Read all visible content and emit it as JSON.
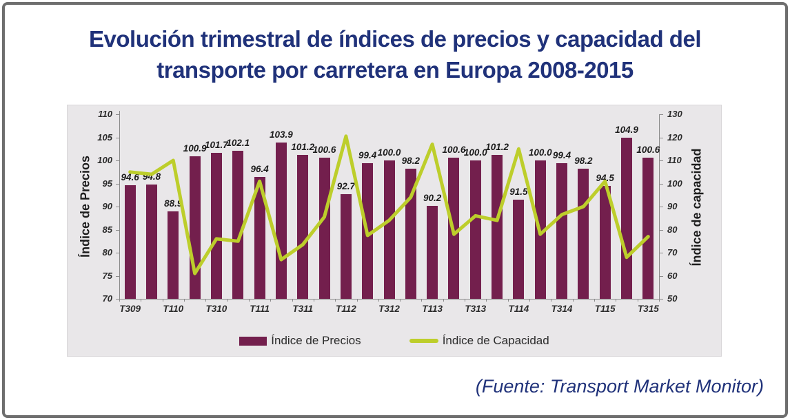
{
  "header": {
    "title_line1": "Evolución trimestral de índices de precios y capacidad del",
    "title_line2": "transporte por carretera en Europa 2008-2015"
  },
  "footer": {
    "source": "(Fuente: Transport Market Monitor)"
  },
  "colors": {
    "title_navy": "#20327A",
    "bar": "#731F4D",
    "line": "#BDCE2B",
    "panel_bg": "#E9E7E9",
    "frame_border": "#6E6E6E",
    "tick_text": "#2b2b2b"
  },
  "chart_data": {
    "type": "combo-bar-line",
    "title": "Evolución trimestral de índices de precios y capacidad del transporte por carretera en Europa 2008-2015",
    "x_tick_labels": [
      "T309",
      "T110",
      "T310",
      "T111",
      "T311",
      "T112",
      "T312",
      "T113",
      "T313",
      "T114",
      "T314",
      "T115",
      "T315"
    ],
    "x_tick_bar_indices": [
      0,
      2,
      4,
      6,
      8,
      10,
      12,
      14,
      16,
      18,
      20,
      22,
      24
    ],
    "series": [
      {
        "name": "Índice de Precios",
        "type": "bar",
        "axis": "left",
        "values": [
          94.6,
          94.8,
          88.9,
          100.9,
          101.7,
          102.1,
          96.4,
          103.9,
          101.2,
          100.6,
          92.7,
          99.4,
          100.0,
          98.2,
          90.2,
          100.6,
          100.0,
          101.2,
          91.5,
          100.0,
          99.4,
          98.2,
          94.5,
          104.9,
          100.6
        ]
      },
      {
        "name": "Índice de Capacidad",
        "type": "line",
        "axis": "right",
        "values": [
          105,
          104,
          110,
          61,
          76,
          75,
          101,
          67,
          73.5,
          85.5,
          120.5,
          77.5,
          84,
          94,
          117,
          78,
          86,
          84,
          115,
          78,
          86.5,
          90,
          101,
          68,
          77
        ]
      }
    ],
    "left_axis": {
      "title": "Índice de Precios",
      "min": 70,
      "max": 110,
      "step": 5
    },
    "right_axis": {
      "title": "Índice de capacidad",
      "min": 50,
      "max": 130,
      "step": 10
    },
    "grid": false,
    "legend_position": "bottom",
    "data_labels_on": "bars"
  }
}
